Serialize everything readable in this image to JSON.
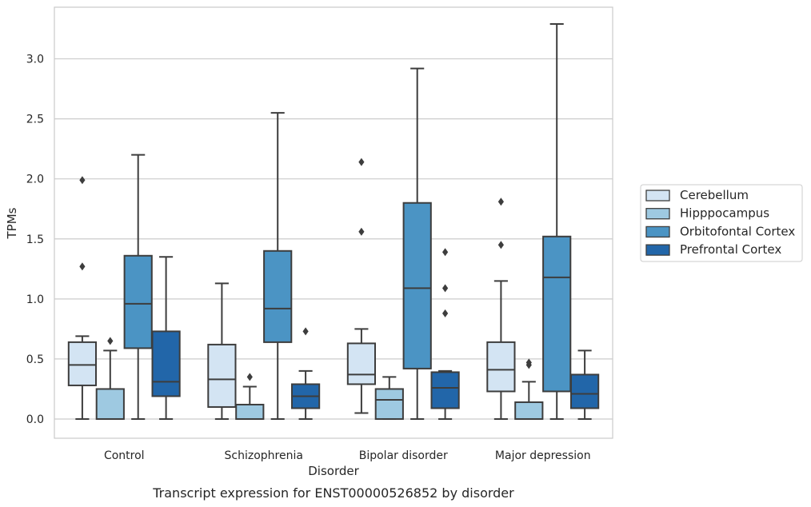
{
  "chart_data": {
    "type": "box",
    "title": "",
    "caption": "Transcript expression for ENST00000526852 by disorder",
    "xlabel": "Disorder",
    "ylabel": "TPMs",
    "ylim": [
      -0.16,
      3.43
    ],
    "yticks": [
      0.0,
      0.5,
      1.0,
      1.5,
      2.0,
      2.5,
      3.0
    ],
    "ytick_labels": [
      "0.0",
      "0.5",
      "1.0",
      "1.5",
      "2.0",
      "2.5",
      "3.0"
    ],
    "grid": "horizontal",
    "legend_position": "right",
    "categories": [
      "Control",
      "Schizophrenia",
      "Bipolar disorder",
      "Major depression"
    ],
    "series": [
      {
        "name": "Cerebellum",
        "color": "#d3e4f3",
        "boxes": [
          {
            "min": 0.0,
            "q1": 0.28,
            "median": 0.45,
            "q3": 0.64,
            "max": 0.69,
            "outliers": [
              1.27,
              1.99
            ]
          },
          {
            "min": 0.0,
            "q1": 0.1,
            "median": 0.33,
            "q3": 0.62,
            "max": 1.13,
            "outliers": []
          },
          {
            "min": 0.05,
            "q1": 0.29,
            "median": 0.37,
            "q3": 0.63,
            "max": 0.75,
            "outliers": [
              1.56,
              2.14
            ]
          },
          {
            "min": 0.0,
            "q1": 0.23,
            "median": 0.41,
            "q3": 0.64,
            "max": 1.15,
            "outliers": [
              1.45,
              1.81
            ]
          }
        ]
      },
      {
        "name": "Hipppocampus",
        "color": "#9ec9e1",
        "boxes": [
          {
            "min": 0.0,
            "q1": 0.0,
            "median": 0.0,
            "q3": 0.25,
            "max": 0.57,
            "outliers": [
              0.65
            ]
          },
          {
            "min": 0.0,
            "q1": 0.0,
            "median": 0.0,
            "q3": 0.12,
            "max": 0.27,
            "outliers": [
              0.35
            ]
          },
          {
            "min": 0.0,
            "q1": 0.0,
            "median": 0.16,
            "q3": 0.25,
            "max": 0.35,
            "outliers": []
          },
          {
            "min": 0.0,
            "q1": 0.0,
            "median": 0.0,
            "q3": 0.14,
            "max": 0.31,
            "outliers": [
              0.45,
              0.47
            ]
          }
        ]
      },
      {
        "name": "Orbitofontal Cortex",
        "color": "#4b94c4",
        "boxes": [
          {
            "min": 0.0,
            "q1": 0.59,
            "median": 0.96,
            "q3": 1.36,
            "max": 2.2,
            "outliers": []
          },
          {
            "min": 0.0,
            "q1": 0.64,
            "median": 0.92,
            "q3": 1.4,
            "max": 2.55,
            "outliers": []
          },
          {
            "min": 0.0,
            "q1": 0.42,
            "median": 1.09,
            "q3": 1.8,
            "max": 2.92,
            "outliers": []
          },
          {
            "min": 0.0,
            "q1": 0.23,
            "median": 1.18,
            "q3": 1.52,
            "max": 3.29,
            "outliers": []
          }
        ]
      },
      {
        "name": "Prefrontal Cortex",
        "color": "#2266a9",
        "boxes": [
          {
            "min": 0.0,
            "q1": 0.19,
            "median": 0.31,
            "q3": 0.73,
            "max": 1.35,
            "outliers": []
          },
          {
            "min": 0.0,
            "q1": 0.09,
            "median": 0.19,
            "q3": 0.29,
            "max": 0.4,
            "outliers": [
              0.73
            ]
          },
          {
            "min": 0.0,
            "q1": 0.09,
            "median": 0.26,
            "q3": 0.39,
            "max": 0.4,
            "outliers": [
              0.88,
              1.09,
              1.39
            ]
          },
          {
            "min": 0.0,
            "q1": 0.09,
            "median": 0.21,
            "q3": 0.37,
            "max": 0.57,
            "outliers": []
          }
        ]
      }
    ]
  }
}
